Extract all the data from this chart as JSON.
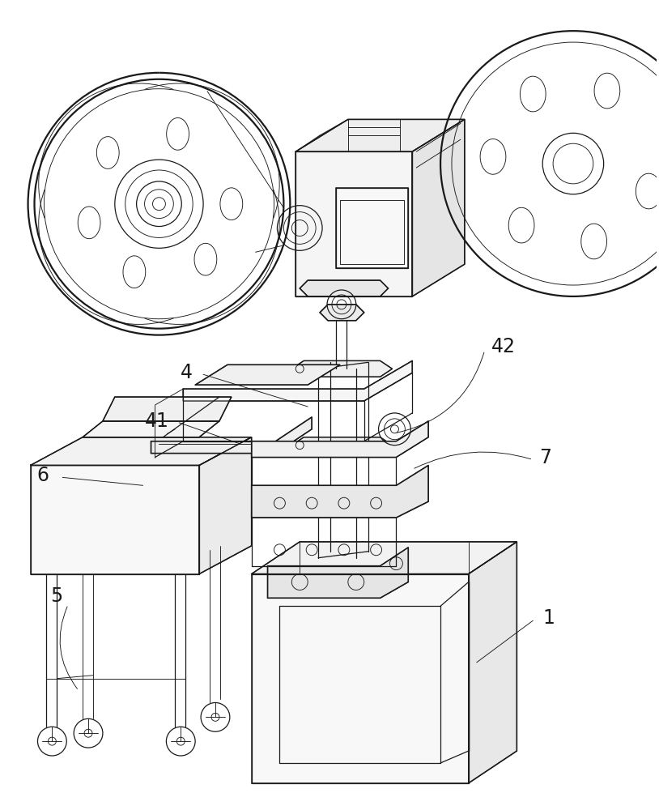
{
  "bg_color": "#ffffff",
  "line_color": "#1a1a1a",
  "lw": 1.1,
  "lw_thin": 0.65,
  "lw_thick": 1.6,
  "lw_med": 0.9,
  "fig_width": 8.14,
  "fig_height": 10.0,
  "dpi": 100
}
